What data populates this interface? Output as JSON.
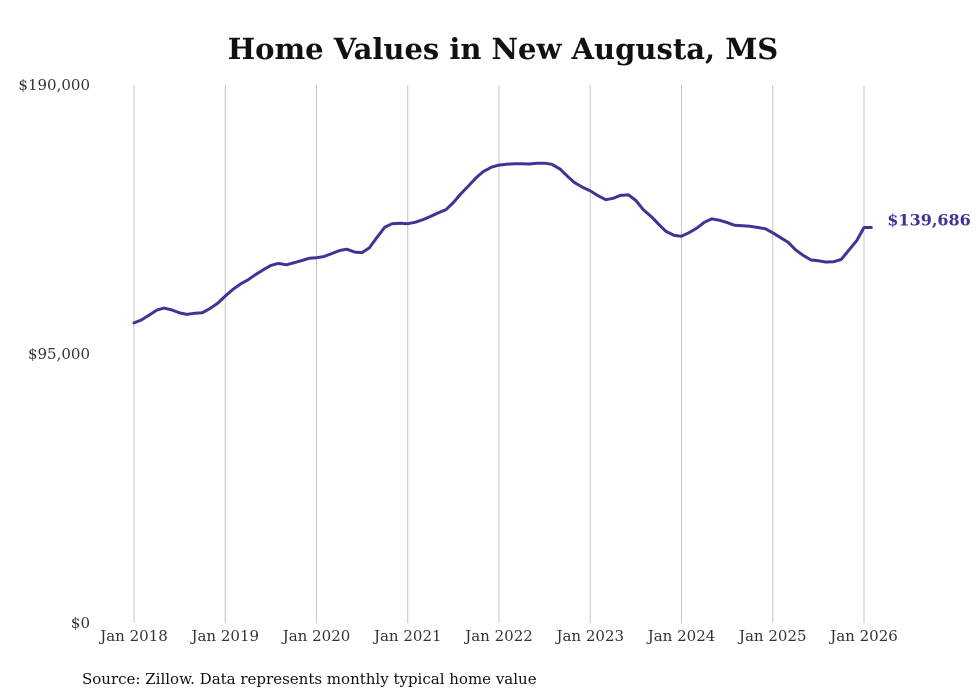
{
  "chart_data": {
    "type": "line",
    "title": "Home Values in New Augusta, MS",
    "source": "Source: Zillow. Data represents monthly typical home value",
    "ylim": [
      0,
      190000
    ],
    "yticks": [
      {
        "value": 0,
        "label": "$0"
      },
      {
        "value": 95000,
        "label": "$95,000"
      },
      {
        "value": 190000,
        "label": "$190,000"
      }
    ],
    "xticks": [
      {
        "value": 2018,
        "label": "Jan 2018"
      },
      {
        "value": 2019,
        "label": "Jan 2019"
      },
      {
        "value": 2020,
        "label": "Jan 2020"
      },
      {
        "value": 2021,
        "label": "Jan 2021"
      },
      {
        "value": 2022,
        "label": "Jan 2022"
      },
      {
        "value": 2023,
        "label": "Jan 2023"
      },
      {
        "value": 2024,
        "label": "Jan 2024"
      },
      {
        "value": 2025,
        "label": "Jan 2025"
      },
      {
        "value": 2026,
        "label": "Jan 2026"
      }
    ],
    "xlim": [
      2018,
      2026.2
    ],
    "grid": "vertical",
    "line_color": "#3f3495",
    "end_label": "$139,686",
    "series": [
      {
        "x": [
          2018.0,
          2018.08,
          2018.17,
          2018.25,
          2018.33,
          2018.42,
          2018.5,
          2018.58,
          2018.67,
          2018.75,
          2018.83,
          2018.92,
          2019.0,
          2019.08,
          2019.17,
          2019.25,
          2019.33,
          2019.42,
          2019.5,
          2019.58,
          2019.67,
          2019.75,
          2019.83,
          2019.92,
          2020.0,
          2020.08,
          2020.17,
          2020.25,
          2020.33,
          2020.42,
          2020.5,
          2020.58,
          2020.67,
          2020.75,
          2020.83,
          2020.92,
          2021.0,
          2021.08,
          2021.17,
          2021.25,
          2021.33,
          2021.42,
          2021.5,
          2021.58,
          2021.67,
          2021.75,
          2021.83,
          2021.92,
          2022.0,
          2022.08,
          2022.17,
          2022.25,
          2022.33,
          2022.42,
          2022.5,
          2022.58,
          2022.67,
          2022.75,
          2022.83,
          2022.92,
          2023.0,
          2023.08,
          2023.17,
          2023.25,
          2023.33,
          2023.42,
          2023.5,
          2023.58,
          2023.67,
          2023.75,
          2023.83,
          2023.92,
          2024.0,
          2024.08,
          2024.17,
          2024.25,
          2024.33,
          2024.42,
          2024.5,
          2024.58,
          2024.67,
          2024.75,
          2024.83,
          2024.92,
          2025.0,
          2025.08,
          2025.17,
          2025.25,
          2025.33,
          2025.42,
          2025.5,
          2025.58,
          2025.67,
          2025.75,
          2025.83,
          2025.92,
          2026.0,
          2026.08
        ],
        "y": [
          106000,
          107000,
          108800,
          110500,
          111200,
          110500,
          109500,
          109000,
          109400,
          109600,
          111000,
          113000,
          115500,
          117700,
          119800,
          121200,
          123000,
          124800,
          126300,
          127000,
          126500,
          127200,
          127900,
          128800,
          129000,
          129400,
          130500,
          131500,
          132000,
          131000,
          130800,
          132500,
          136500,
          139800,
          141000,
          141200,
          141000,
          141500,
          142500,
          143600,
          144800,
          146000,
          148500,
          151500,
          154500,
          157300,
          159500,
          161000,
          161700,
          162000,
          162200,
          162200,
          162100,
          162400,
          162400,
          162000,
          160300,
          157800,
          155500,
          153800,
          152600,
          151000,
          149500,
          150000,
          151000,
          151200,
          149200,
          146000,
          143500,
          140800,
          138300,
          136900,
          136600,
          137800,
          139500,
          141500,
          142700,
          142200,
          141400,
          140500,
          140300,
          140100,
          139700,
          139200,
          137800,
          136200,
          134400,
          131800,
          129900,
          128200,
          127900,
          127500,
          127600,
          128400,
          131500,
          135000,
          139686,
          139686
        ]
      }
    ]
  }
}
